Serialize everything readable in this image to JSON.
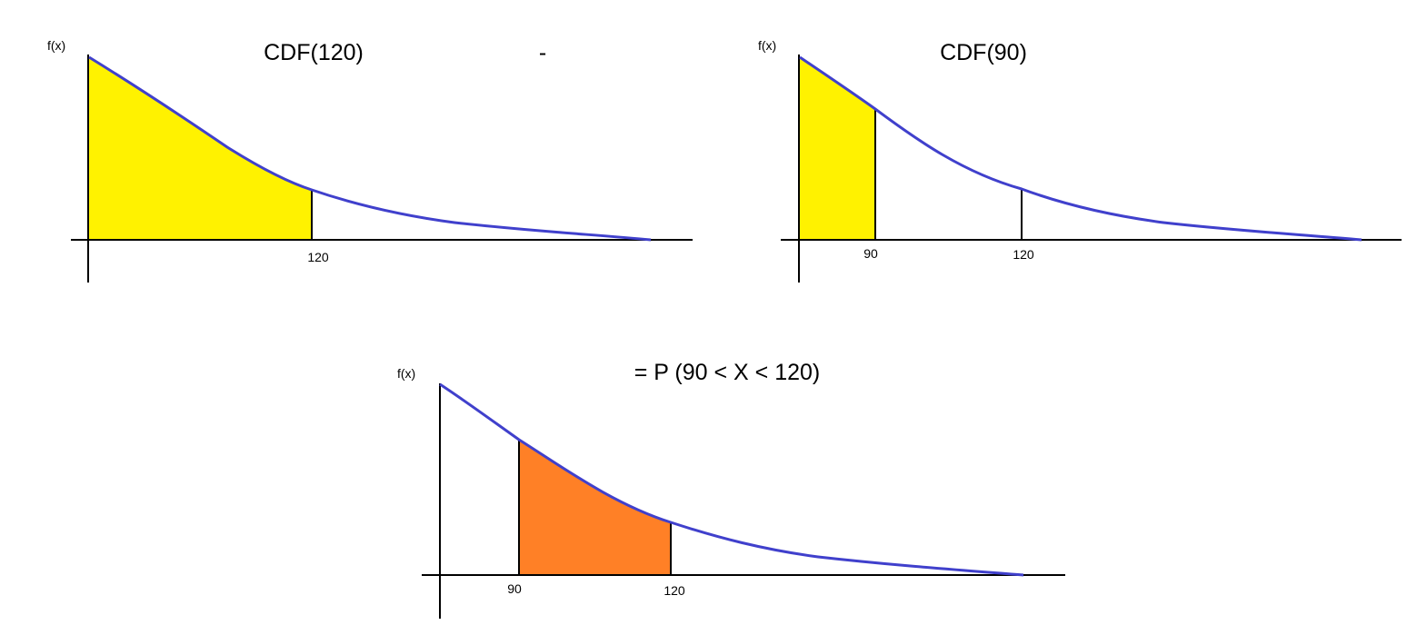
{
  "panels": {
    "top_left": {
      "ylabel": "f(x)",
      "title": "CDF(120)",
      "tick_labels": [
        "120"
      ],
      "shading": {
        "from": "0",
        "to": "120",
        "color": "#FFF200"
      }
    },
    "operator": "-",
    "top_right": {
      "ylabel": "f(x)",
      "title": "CDF(90)",
      "tick_labels": [
        "90",
        "120"
      ],
      "shading": {
        "from": "0",
        "to": "90",
        "color": "#FFF200"
      }
    },
    "bottom": {
      "ylabel": "f(x)",
      "title": "= P (90 < X < 120)",
      "tick_labels": [
        "90",
        "120"
      ],
      "shading": {
        "from": "90",
        "to": "120",
        "color": "#FF8026"
      }
    }
  },
  "colors": {
    "curve": "#4040CC",
    "axis": "#000000",
    "fill_cdf": "#FFF200",
    "fill_interval": "#FF8026"
  }
}
